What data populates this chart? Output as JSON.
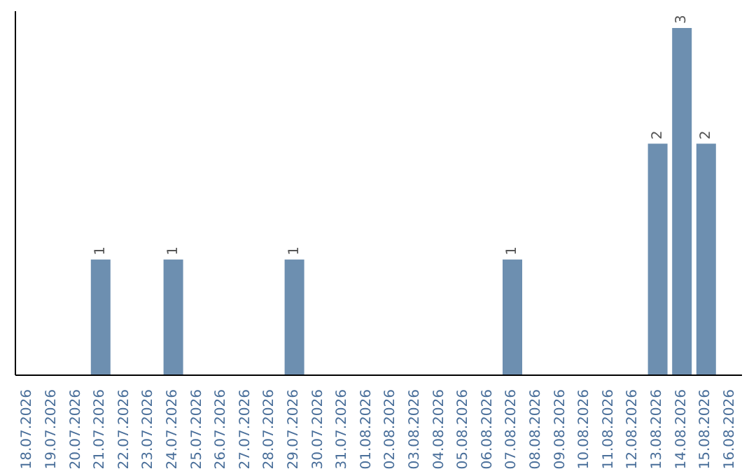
{
  "chart_data": {
    "type": "bar",
    "categories": [
      "18.07.2026",
      "19.07.2026",
      "20.07.2026",
      "21.07.2026",
      "22.07.2026",
      "23.07.2026",
      "24.07.2026",
      "25.07.2026",
      "26.07.2026",
      "27.07.2026",
      "28.07.2026",
      "29.07.2026",
      "30.07.2026",
      "31.07.2026",
      "01.08.2026",
      "02.08.2026",
      "03.08.2026",
      "04.08.2026",
      "05.08.2026",
      "06.08.2026",
      "07.08.2026",
      "08.08.2026",
      "09.08.2026",
      "10.08.2026",
      "11.08.2026",
      "12.08.2026",
      "13.08.2026",
      "14.08.2026",
      "15.08.2026",
      "16.08.2026"
    ],
    "values": [
      0,
      0,
      0,
      1,
      0,
      0,
      1,
      0,
      0,
      0,
      0,
      1,
      0,
      0,
      0,
      0,
      0,
      0,
      0,
      0,
      1,
      0,
      0,
      0,
      0,
      0,
      2,
      3,
      2,
      0
    ],
    "value_labels": [
      null,
      null,
      null,
      "1",
      null,
      null,
      "1",
      null,
      null,
      null,
      null,
      "1",
      null,
      null,
      null,
      null,
      null,
      null,
      null,
      null,
      "1",
      null,
      null,
      null,
      null,
      null,
      "2",
      "3",
      "2",
      null
    ],
    "color": "#6d8fb0"
  }
}
